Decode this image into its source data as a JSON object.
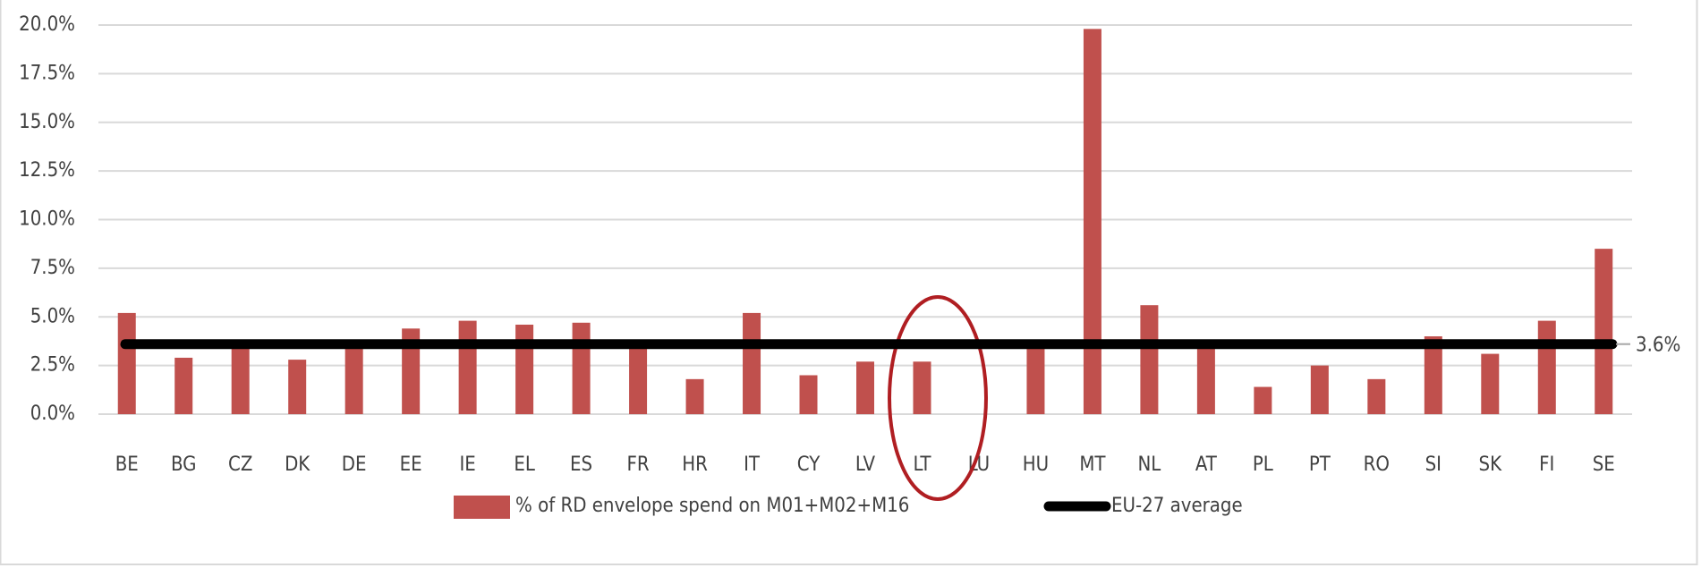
{
  "chart_data": {
    "type": "bar",
    "categories": [
      "BE",
      "BG",
      "CZ",
      "DK",
      "DE",
      "EE",
      "IE",
      "EL",
      "ES",
      "FR",
      "HR",
      "IT",
      "CY",
      "LV",
      "LT",
      "LU",
      "HU",
      "MT",
      "NL",
      "AT",
      "PL",
      "PT",
      "RO",
      "SI",
      "SK",
      "FI",
      "SE"
    ],
    "series": [
      {
        "name": "% of RD envelope spend on M01+M02+M16",
        "color": "#c0504d",
        "values": [
          5.2,
          2.9,
          3.5,
          2.8,
          3.5,
          4.4,
          4.8,
          4.6,
          4.7,
          3.5,
          1.8,
          5.2,
          2.0,
          2.7,
          2.7,
          0,
          3.5,
          19.8,
          5.6,
          3.5,
          1.4,
          2.5,
          1.8,
          4.0,
          3.1,
          4.8,
          8.5
        ]
      }
    ],
    "reference_line": {
      "name": "EU-27 average",
      "value": 3.6,
      "label": "3.6%",
      "color": "#000000"
    },
    "ylim": [
      0,
      20
    ],
    "yticks": [
      {
        "value": 0,
        "label": "0.0%"
      },
      {
        "value": 2.5,
        "label": "2.5%"
      },
      {
        "value": 5,
        "label": "5.0%"
      },
      {
        "value": 7.5,
        "label": "7.5%"
      },
      {
        "value": 10,
        "label": "10.0%"
      },
      {
        "value": 12.5,
        "label": "12.5%"
      },
      {
        "value": 15,
        "label": "15.0%"
      },
      {
        "value": 17.5,
        "label": "17.5%"
      },
      {
        "value": 20,
        "label": "20.0%"
      }
    ],
    "grid": true,
    "legend": "bottom"
  }
}
